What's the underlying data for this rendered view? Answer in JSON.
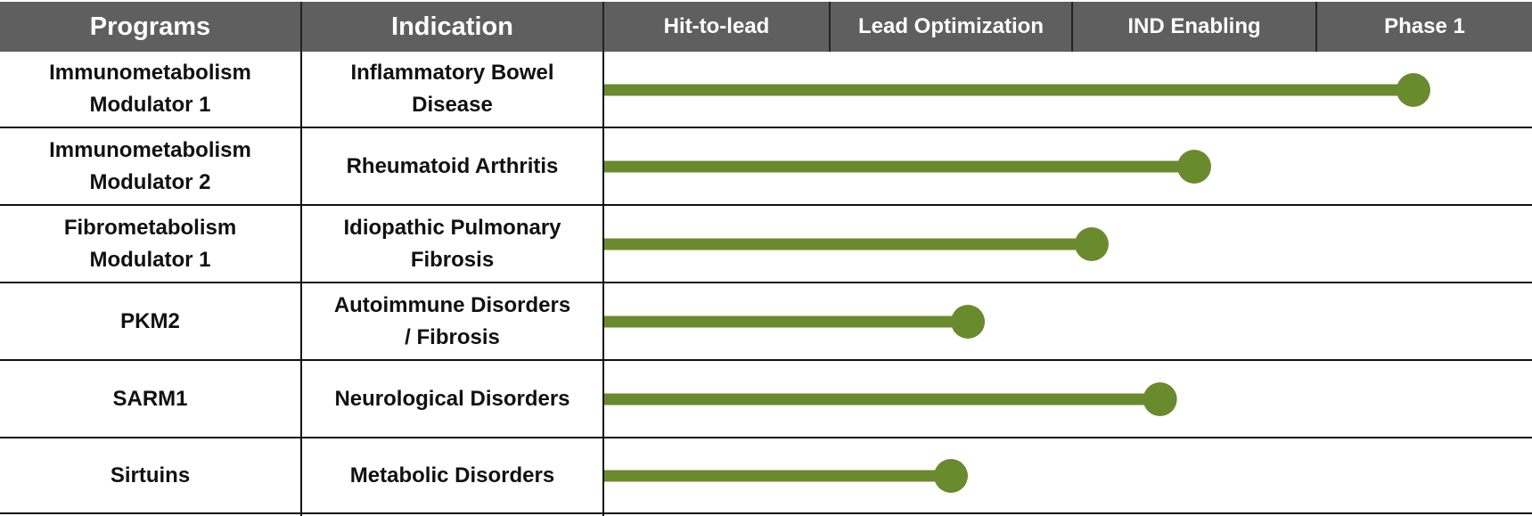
{
  "headers": {
    "programs": "Programs",
    "indication": "Indication",
    "stages": [
      "Hit-to-lead",
      "Lead Optimization",
      "IND Enabling",
      "Phase 1"
    ]
  },
  "rows": [
    {
      "program": "Immunometabolism\nModulator 1",
      "indication": "Inflammatory Bowel\nDisease"
    },
    {
      "program": "Immunometabolism\nModulator 2",
      "indication": "Rheumatoid Arthritis"
    },
    {
      "program": "Fibrometabolism\nModulator 1",
      "indication": "Idiopathic Pulmonary\nFibrosis"
    },
    {
      "program": "PKM2",
      "indication": "Autoimmune Disorders\n/ Fibrosis"
    },
    {
      "program": "SARM1",
      "indication": "Neurological Disorders"
    },
    {
      "program": "Sirtuins",
      "indication": "Metabolic Disorders"
    }
  ],
  "colors": {
    "header_bg": "#5f5f5f",
    "header_text": "#ffffff",
    "bar": "#6a8a2e"
  },
  "chart_data": {
    "type": "bar",
    "orientation": "horizontal",
    "categories": [
      "Immunometabolism Modulator 1",
      "Immunometabolism Modulator 2",
      "Fibrometabolism Modulator 1",
      "PKM2",
      "SARM1",
      "Sirtuins"
    ],
    "stages": [
      "Hit-to-lead",
      "Lead Optimization",
      "IND Enabling",
      "Phase 1"
    ],
    "values": [
      3.45,
      2.5,
      2.08,
      1.57,
      2.36,
      1.5
    ],
    "xlim": [
      0,
      4
    ]
  }
}
